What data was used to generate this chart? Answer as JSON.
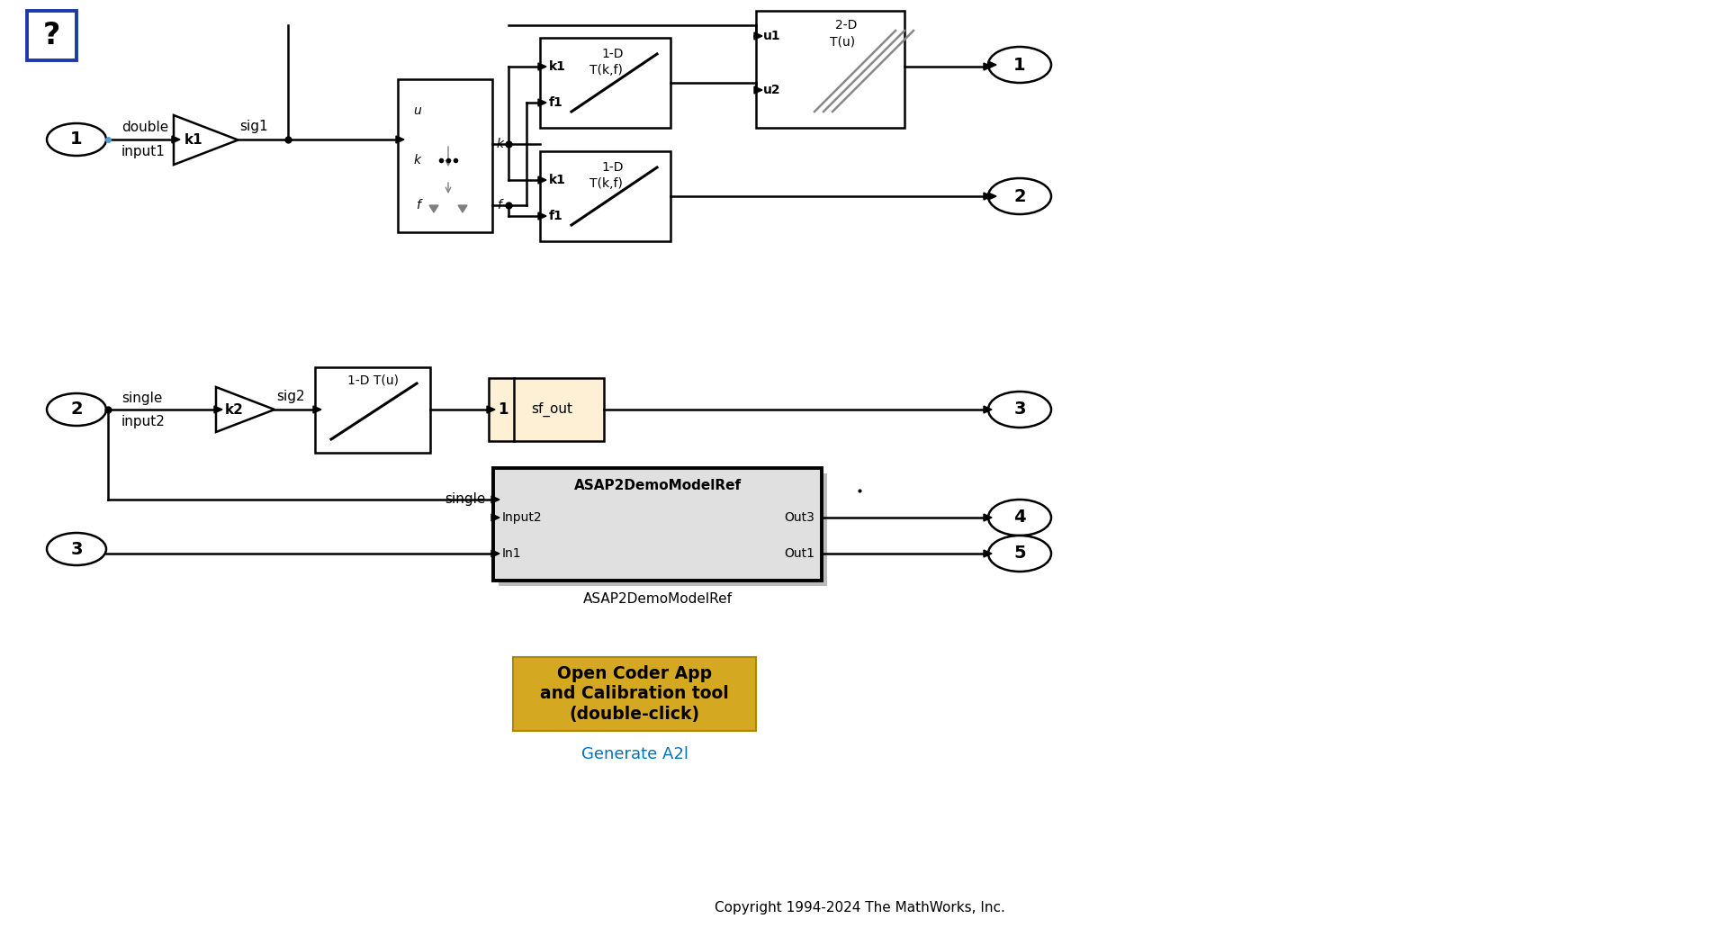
{
  "bg_color": "#ffffff",
  "copyright_text": "Copyright 1994-2024 The MathWorks, Inc.",
  "generate_text": "Generate A2l",
  "button_text": "Open Coder App\nand Calibration tool\n(double-click)",
  "button_color": "#d4a820",
  "question_box_color": "#1a3aaa",
  "signal_color": "#5599cc",
  "sf_block_bg": "#fdf0d5",
  "generate_color": "#0070c0",
  "lw": 1.8
}
